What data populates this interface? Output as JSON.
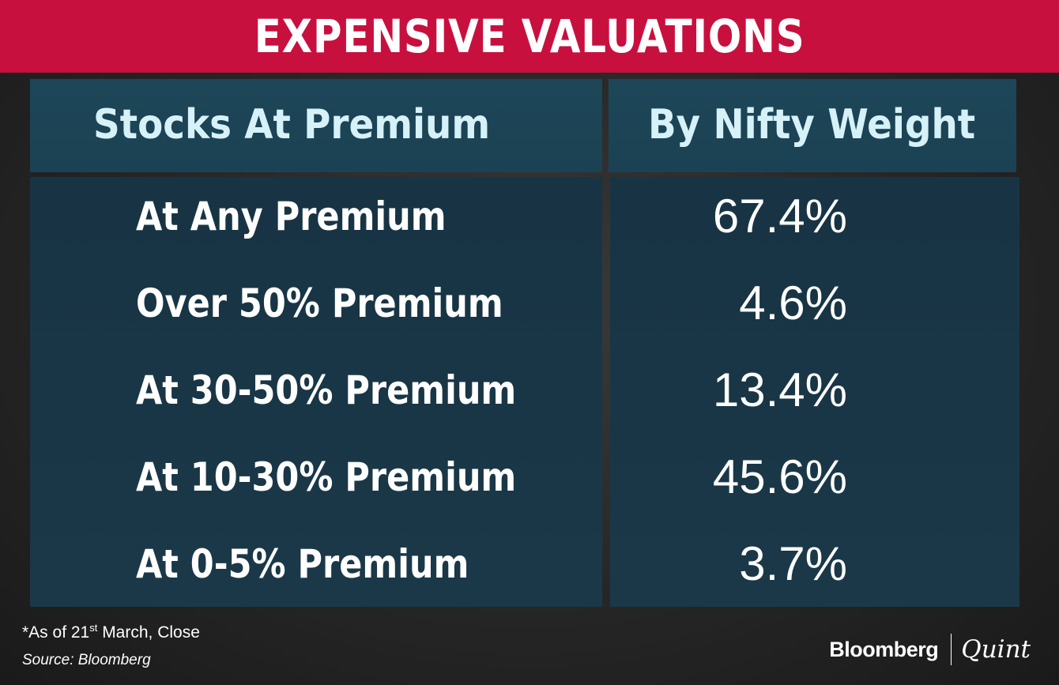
{
  "header": {
    "title": "EXPENSIVE VALUATIONS",
    "background_color": "#c8103f"
  },
  "chart_data": {
    "type": "table",
    "title": "EXPENSIVE VALUATIONS",
    "columns": [
      "Stocks At Premium",
      "By Nifty Weight"
    ],
    "rows": [
      {
        "category": "At Any Premium",
        "value": "67.4%"
      },
      {
        "category": "Over 50% Premium",
        "value": "4.6%"
      },
      {
        "category": "At 30-50% Premium",
        "value": "13.4%"
      },
      {
        "category": "At 10-30% Premium",
        "value": "45.6%"
      },
      {
        "category": "At 0-5% Premium",
        "value": "3.7%"
      }
    ],
    "values_numeric": [
      67.4,
      4.6,
      13.4,
      45.6,
      3.7
    ],
    "units": "%",
    "colors": {
      "header_cell": "#1d4658",
      "body_cell": "#183444",
      "header_text": "#d6f2f8",
      "body_text": "#ffffff"
    }
  },
  "footnote": {
    "prefix": "*As of 21",
    "superscript": "st",
    "suffix": " March, Close"
  },
  "source": "Source: Bloomberg",
  "logo": {
    "primary": "Bloomberg",
    "secondary": "Quint"
  }
}
